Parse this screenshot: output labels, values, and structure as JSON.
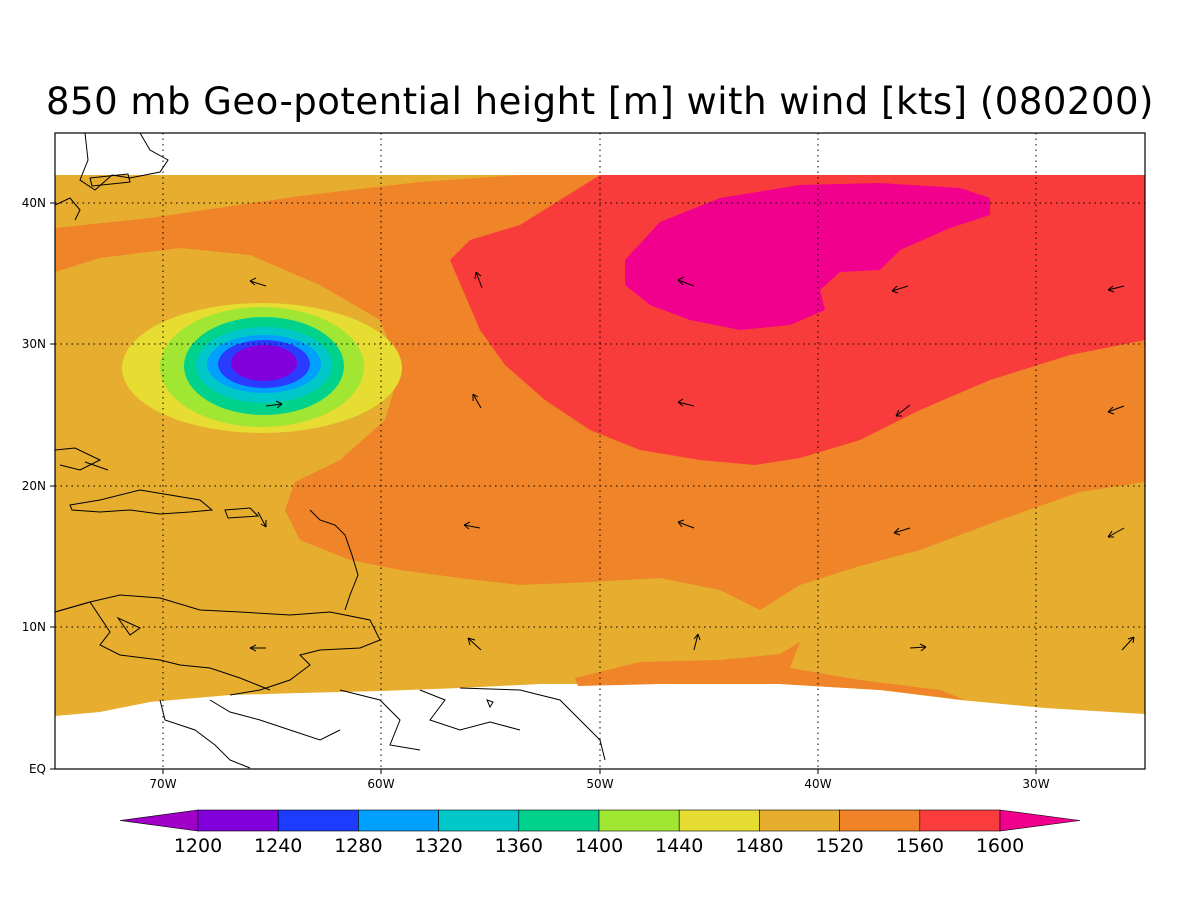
{
  "title": "850 mb Geo-potential height [m] with wind [kts] (080200)",
  "colors": {
    "ocean_low": "#e6ad2e",
    "mid": "#f08428",
    "high": "#f83c3c",
    "peak": "#f0008c",
    "low_contours": [
      "#e6dc32",
      "#a0e632",
      "#00d28c",
      "#00c8c8",
      "#00a0ff",
      "#2a3cff",
      "#8200dc"
    ]
  },
  "axes": {
    "lon_labels": [
      "70W",
      "60W",
      "50W",
      "40W",
      "30W"
    ],
    "lat_labels": [
      "EQ",
      "10N",
      "20N",
      "30N",
      "40N"
    ]
  },
  "colorbar": {
    "colors": [
      "#a000c8",
      "#8200dc",
      "#1e3cff",
      "#00a0ff",
      "#00c8c8",
      "#00d28c",
      "#a0e632",
      "#e6dc32",
      "#e6ad2e",
      "#f08228",
      "#fa3c3c",
      "#f0008c"
    ],
    "labels": [
      "1200",
      "1240",
      "1280",
      "1320",
      "1360",
      "1400",
      "1440",
      "1480",
      "1520",
      "1560",
      "1600"
    ]
  }
}
